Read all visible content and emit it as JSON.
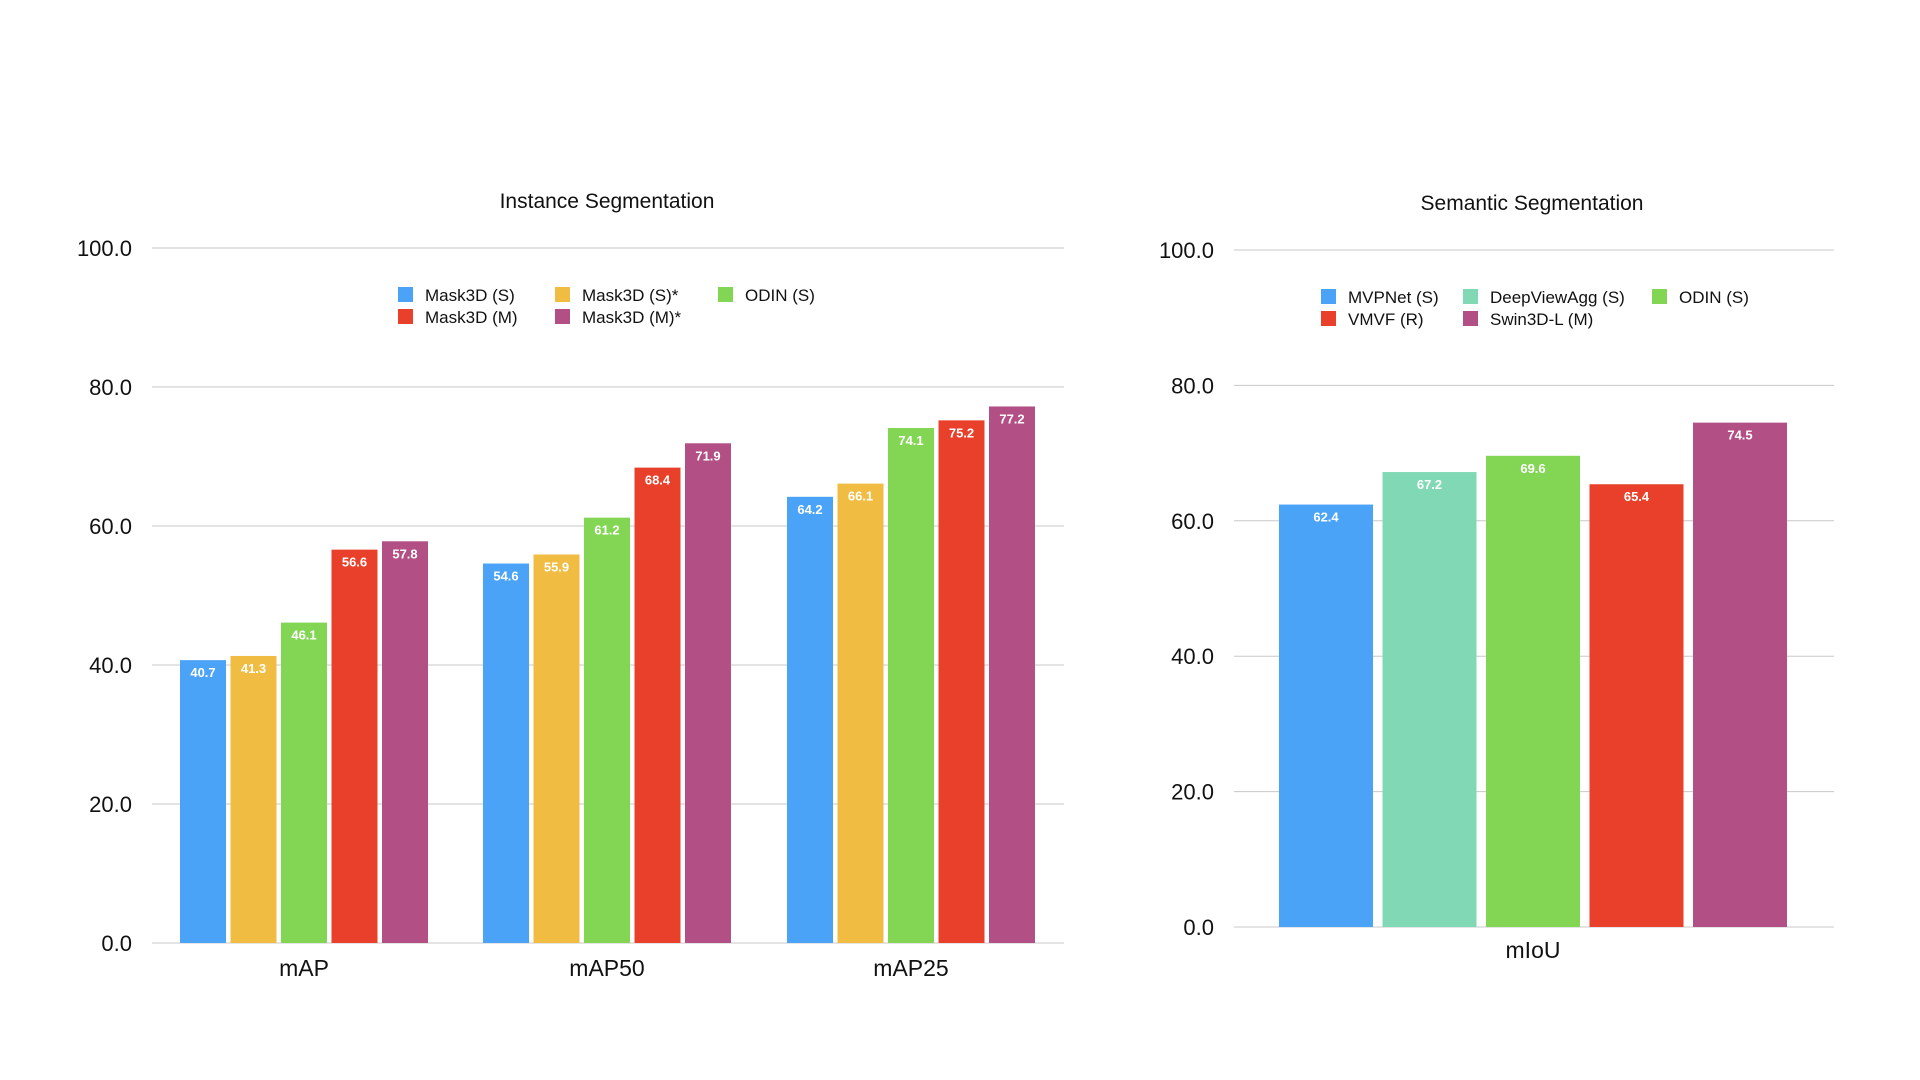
{
  "chart_data": [
    {
      "type": "bar",
      "title": "Instance Segmentation",
      "xlabel": "",
      "ylabel": "",
      "ylim": [
        0,
        100
      ],
      "yticks": [
        "0.0",
        "20.0",
        "40.0",
        "60.0",
        "80.0",
        "100.0"
      ],
      "grid": true,
      "legend_position": "top-center",
      "categories": [
        "mAP",
        "mAP50",
        "mAP25"
      ],
      "series": [
        {
          "name": "Mask3D (S)",
          "color": "#4aa3f7",
          "values": [
            40.7,
            54.6,
            64.2
          ],
          "labels": [
            "40.7",
            "54.6",
            "64.2"
          ]
        },
        {
          "name": "Mask3D (S)*",
          "color": "#f0bc42",
          "values": [
            41.3,
            55.9,
            66.1
          ],
          "labels": [
            "41.3",
            "55.9",
            "66.1"
          ]
        },
        {
          "name": "ODIN (S)",
          "color": "#82d654",
          "values": [
            46.1,
            61.2,
            74.1
          ],
          "labels": [
            "46.1",
            "61.2",
            "74.1"
          ]
        },
        {
          "name": "Mask3D (M)",
          "color": "#e8402a",
          "values": [
            56.6,
            68.4,
            75.2
          ],
          "labels": [
            "56.6",
            "68.4",
            "75.2"
          ]
        },
        {
          "name": "Mask3D (M)*",
          "color": "#b24f84",
          "values": [
            57.8,
            71.9,
            77.2
          ],
          "labels": [
            "57.8",
            "71.9",
            "77.2"
          ]
        }
      ]
    },
    {
      "type": "bar",
      "title": "Semantic Segmentation",
      "xlabel": "",
      "ylabel": "",
      "ylim": [
        0,
        100
      ],
      "yticks": [
        "0.0",
        "20.0",
        "40.0",
        "60.0",
        "80.0",
        "100.0"
      ],
      "grid": true,
      "legend_position": "top-center",
      "categories": [
        "mIoU"
      ],
      "series": [
        {
          "name": "MVPNet (S)",
          "color": "#4aa3f7",
          "values": [
            62.4
          ],
          "labels": [
            "62.4"
          ]
        },
        {
          "name": "DeepViewAgg (S)",
          "color": "#80d8b4",
          "values": [
            67.2
          ],
          "labels": [
            "67.2"
          ]
        },
        {
          "name": "ODIN (S)",
          "color": "#82d654",
          "values": [
            69.6
          ],
          "labels": [
            "69.6"
          ]
        },
        {
          "name": "VMVF (R)",
          "color": "#e8402a",
          "values": [
            65.4
          ],
          "labels": [
            "65.4"
          ]
        },
        {
          "name": "Swin3D-L (M)",
          "color": "#b24f84",
          "values": [
            74.5
          ],
          "labels": [
            "74.5"
          ]
        }
      ]
    }
  ]
}
